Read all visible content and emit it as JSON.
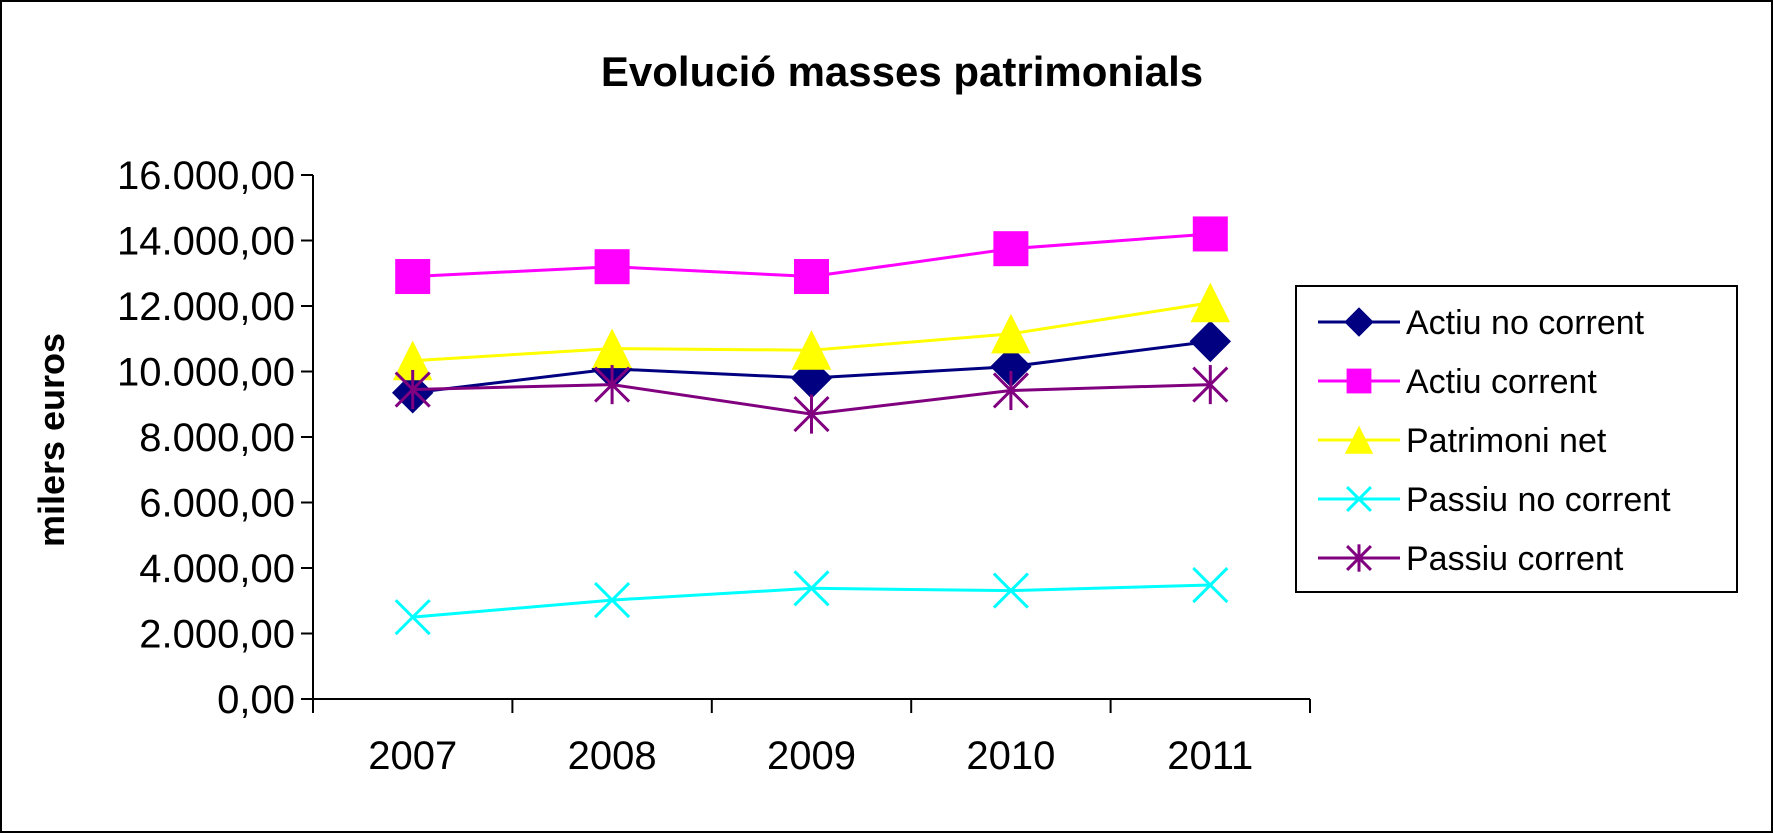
{
  "chart_data": {
    "type": "line",
    "title": "Evolució masses patrimonials",
    "xlabel": "",
    "ylabel": "milers euros",
    "categories": [
      "2007",
      "2008",
      "2009",
      "2010",
      "2011"
    ],
    "ylim": [
      0,
      16000
    ],
    "ytick_step": 2000,
    "yticks": [
      "0,00",
      "2.000,00",
      "4.000,00",
      "6.000,00",
      "8.000,00",
      "10.000,00",
      "12.000,00",
      "14.000,00",
      "16.000,00"
    ],
    "grid": false,
    "legend_position": "right",
    "series": [
      {
        "name": "Actiu no corrent",
        "values": [
          9350,
          10080,
          9800,
          10150,
          10920
        ],
        "color": "#000080",
        "marker": "diamond"
      },
      {
        "name": "Actiu corrent",
        "values": [
          12900,
          13200,
          12900,
          13750,
          14200
        ],
        "color": "#ff00ff",
        "marker": "square"
      },
      {
        "name": "Patrimoni net",
        "values": [
          10330,
          10700,
          10650,
          11150,
          12100
        ],
        "color": "#ffff00",
        "marker": "triangle"
      },
      {
        "name": "Passiu no corrent",
        "values": [
          2500,
          3020,
          3380,
          3310,
          3480
        ],
        "color": "#00ffff",
        "marker": "x"
      },
      {
        "name": "Passiu corrent",
        "values": [
          9450,
          9600,
          8700,
          9420,
          9600
        ],
        "color": "#800080",
        "marker": "star"
      }
    ]
  }
}
